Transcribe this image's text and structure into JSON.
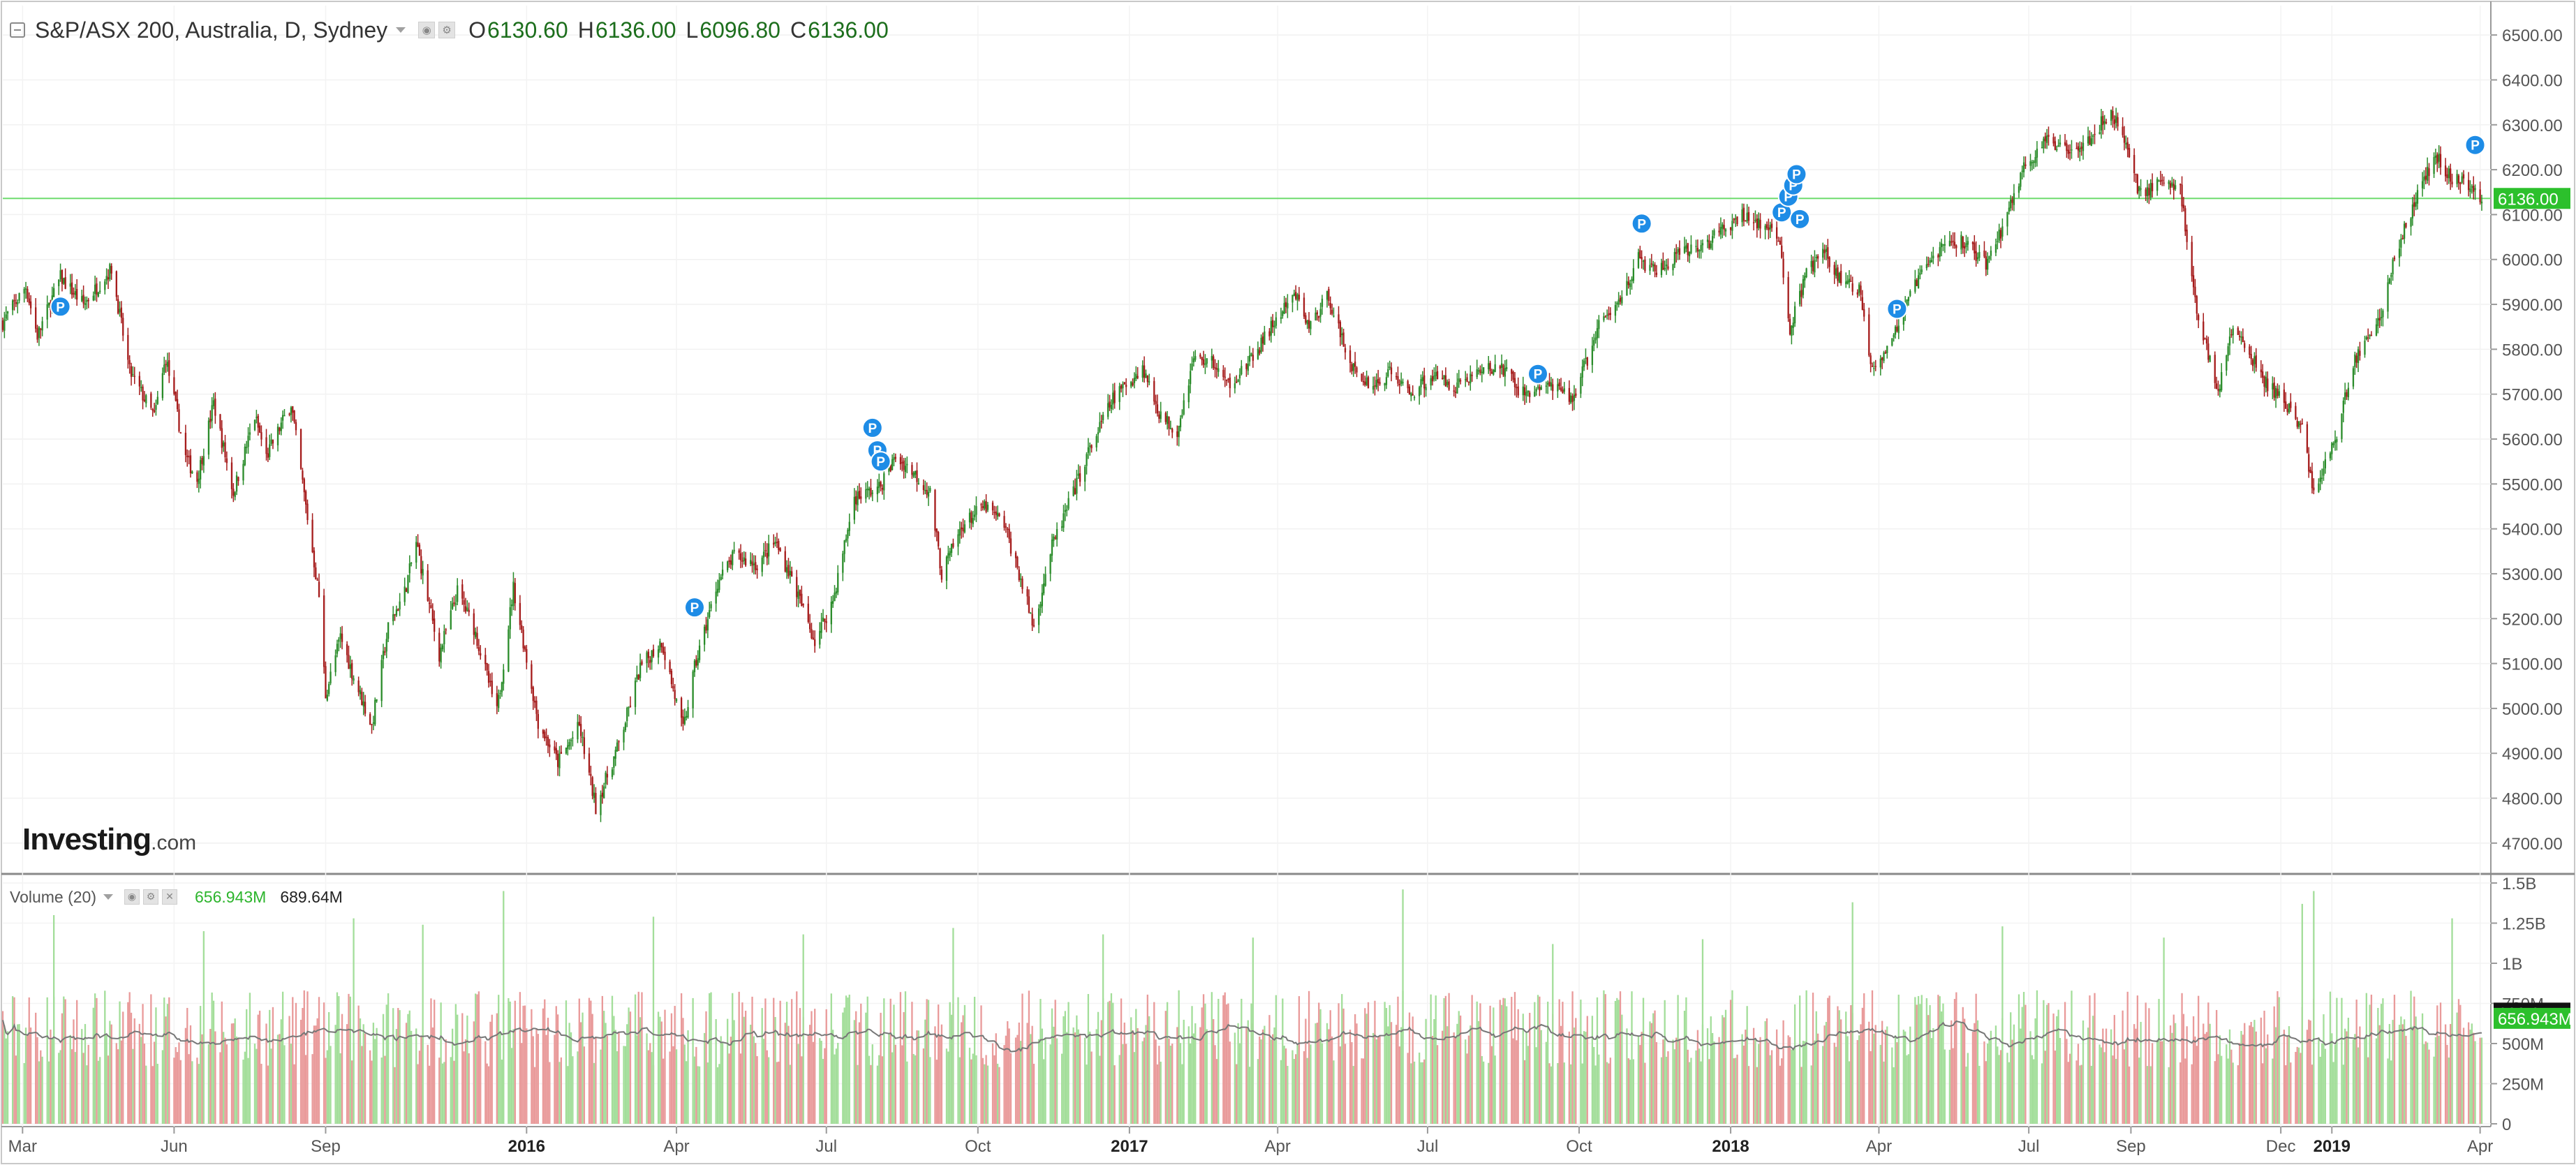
{
  "header": {
    "title": "S&P/ASX 200, Australia, D, Sydney",
    "ohlc": [
      {
        "key": "O",
        "value": "6130.60"
      },
      {
        "key": "H",
        "value": "6136.00"
      },
      {
        "key": "L",
        "value": "6096.80"
      },
      {
        "key": "C",
        "value": "6136.00"
      }
    ]
  },
  "volume_legend": {
    "label": "Volume (20)",
    "volume_value": "656.943M",
    "ma_value": "689.64M"
  },
  "watermark": {
    "main": "Investing",
    "suffix": ".com"
  },
  "colors": {
    "up": "#2a8c2a",
    "down": "#a51b1b",
    "volume_up": "#a3de9a",
    "volume_down": "#e99a9a",
    "last_price_badge": "#2cc02c",
    "marker": "#1e8ce6",
    "ma_line": "#777777"
  },
  "chart_data": [
    {
      "type": "candlestick",
      "price_axis": {
        "ylim": [
          4650,
          6550
        ],
        "ticks": [
          "4700.00",
          "4800.00",
          "4900.00",
          "5000.00",
          "5100.00",
          "5200.00",
          "5300.00",
          "5400.00",
          "5500.00",
          "5600.00",
          "5700.00",
          "5800.00",
          "5900.00",
          "6000.00",
          "6100.00",
          "6200.00",
          "6300.00",
          "6400.00",
          "6500.00"
        ]
      },
      "x_axis": {
        "range": [
          "2015-02-17",
          "2019-04-02"
        ],
        "ticks": [
          {
            "date": "2015-03-01",
            "label": "Mar",
            "bold": false
          },
          {
            "date": "2015-06-01",
            "label": "Jun",
            "bold": false
          },
          {
            "date": "2015-09-01",
            "label": "Sep",
            "bold": false
          },
          {
            "date": "2016-01-01",
            "label": "2016",
            "bold": true
          },
          {
            "date": "2016-04-01",
            "label": "Apr",
            "bold": false
          },
          {
            "date": "2016-07-01",
            "label": "Jul",
            "bold": false
          },
          {
            "date": "2016-10-01",
            "label": "Oct",
            "bold": false
          },
          {
            "date": "2017-01-01",
            "label": "2017",
            "bold": true
          },
          {
            "date": "2017-04-01",
            "label": "Apr",
            "bold": false
          },
          {
            "date": "2017-07-01",
            "label": "Jul",
            "bold": false
          },
          {
            "date": "2017-10-01",
            "label": "Oct",
            "bold": false
          },
          {
            "date": "2018-01-01",
            "label": "2018",
            "bold": true
          },
          {
            "date": "2018-04-01",
            "label": "Apr",
            "bold": false
          },
          {
            "date": "2018-07-01",
            "label": "Jul",
            "bold": false
          },
          {
            "date": "2018-09-01",
            "label": "Sep",
            "bold": false
          },
          {
            "date": "2018-12-01",
            "label": "Dec",
            "bold": false
          },
          {
            "date": "2019-01-01",
            "label": "2019",
            "bold": true
          },
          {
            "date": "2019-04-01",
            "label": "Apr",
            "bold": false
          }
        ]
      },
      "close_series": [
        [
          "2015-02-17",
          5860
        ],
        [
          "2015-03-03",
          5940
        ],
        [
          "2015-03-10",
          5830
        ],
        [
          "2015-03-24",
          5960
        ],
        [
          "2015-04-07",
          5900
        ],
        [
          "2015-04-24",
          5980
        ],
        [
          "2015-05-05",
          5750
        ],
        [
          "2015-05-20",
          5650
        ],
        [
          "2015-05-27",
          5780
        ],
        [
          "2015-06-08",
          5560
        ],
        [
          "2015-06-15",
          5510
        ],
        [
          "2015-06-25",
          5680
        ],
        [
          "2015-07-07",
          5480
        ],
        [
          "2015-07-20",
          5650
        ],
        [
          "2015-07-27",
          5560
        ],
        [
          "2015-08-11",
          5680
        ],
        [
          "2015-08-20",
          5450
        ],
        [
          "2015-08-28",
          5250
        ],
        [
          "2015-09-01",
          5030
        ],
        [
          "2015-09-10",
          5160
        ],
        [
          "2015-09-18",
          5070
        ],
        [
          "2015-09-29",
          4960
        ],
        [
          "2015-10-09",
          5180
        ],
        [
          "2015-10-19",
          5260
        ],
        [
          "2015-10-26",
          5370
        ],
        [
          "2015-11-09",
          5120
        ],
        [
          "2015-11-20",
          5260
        ],
        [
          "2015-11-30",
          5180
        ],
        [
          "2015-12-14",
          4990
        ],
        [
          "2015-12-24",
          5270
        ],
        [
          "2016-01-08",
          4970
        ],
        [
          "2016-01-20",
          4880
        ],
        [
          "2016-02-02",
          4960
        ],
        [
          "2016-02-12",
          4780
        ],
        [
          "2016-02-26",
          4920
        ],
        [
          "2016-03-10",
          5090
        ],
        [
          "2016-03-23",
          5150
        ],
        [
          "2016-04-05",
          4950
        ],
        [
          "2016-04-12",
          5090
        ],
        [
          "2016-04-26",
          5280
        ],
        [
          "2016-05-06",
          5340
        ],
        [
          "2016-05-20",
          5320
        ],
        [
          "2016-05-31",
          5370
        ],
        [
          "2016-06-10",
          5290
        ],
        [
          "2016-06-24",
          5150
        ],
        [
          "2016-07-05",
          5240
        ],
        [
          "2016-07-18",
          5470
        ],
        [
          "2016-08-02",
          5490
        ],
        [
          "2016-08-12",
          5560
        ],
        [
          "2016-08-22",
          5530
        ],
        [
          "2016-09-02",
          5480
        ],
        [
          "2016-09-09",
          5300
        ],
        [
          "2016-09-22",
          5410
        ],
        [
          "2016-10-05",
          5450
        ],
        [
          "2016-10-17",
          5410
        ],
        [
          "2016-10-26",
          5300
        ],
        [
          "2016-11-04",
          5180
        ],
        [
          "2016-11-14",
          5350
        ],
        [
          "2016-11-28",
          5480
        ],
        [
          "2016-12-07",
          5570
        ],
        [
          "2016-12-22",
          5690
        ],
        [
          "2017-01-09",
          5760
        ],
        [
          "2017-01-20",
          5650
        ],
        [
          "2017-01-30",
          5620
        ],
        [
          "2017-02-09",
          5780
        ],
        [
          "2017-02-21",
          5770
        ],
        [
          "2017-03-01",
          5720
        ],
        [
          "2017-03-15",
          5770
        ],
        [
          "2017-03-30",
          5860
        ],
        [
          "2017-04-12",
          5920
        ],
        [
          "2017-04-20",
          5850
        ],
        [
          "2017-05-02",
          5920
        ],
        [
          "2017-05-10",
          5820
        ],
        [
          "2017-05-19",
          5740
        ],
        [
          "2017-05-30",
          5720
        ],
        [
          "2017-06-09",
          5750
        ],
        [
          "2017-06-20",
          5700
        ],
        [
          "2017-07-03",
          5740
        ],
        [
          "2017-07-18",
          5720
        ],
        [
          "2017-08-01",
          5750
        ],
        [
          "2017-08-15",
          5760
        ],
        [
          "2017-08-28",
          5700
        ],
        [
          "2017-09-11",
          5720
        ],
        [
          "2017-09-27",
          5690
        ],
        [
          "2017-10-06",
          5780
        ],
        [
          "2017-10-13",
          5850
        ],
        [
          "2017-10-24",
          5900
        ],
        [
          "2017-11-06",
          6000
        ],
        [
          "2017-11-17",
          5970
        ],
        [
          "2017-12-01",
          6010
        ],
        [
          "2017-12-15",
          6030
        ],
        [
          "2017-12-29",
          6070
        ],
        [
          "2018-01-10",
          6100
        ],
        [
          "2018-01-22",
          6070
        ],
        [
          "2018-01-31",
          6040
        ],
        [
          "2018-02-06",
          5840
        ],
        [
          "2018-02-15",
          5960
        ],
        [
          "2018-02-26",
          6020
        ],
        [
          "2018-03-07",
          5960
        ],
        [
          "2018-03-20",
          5930
        ],
        [
          "2018-03-28",
          5760
        ],
        [
          "2018-04-10",
          5830
        ],
        [
          "2018-04-24",
          5950
        ],
        [
          "2018-05-09",
          6030
        ],
        [
          "2018-05-23",
          6040
        ],
        [
          "2018-06-05",
          5990
        ],
        [
          "2018-06-15",
          6070
        ],
        [
          "2018-06-27",
          6200
        ],
        [
          "2018-07-11",
          6260
        ],
        [
          "2018-07-25",
          6250
        ],
        [
          "2018-08-07",
          6270
        ],
        [
          "2018-08-20",
          6330
        ],
        [
          "2018-08-30",
          6250
        ],
        [
          "2018-09-06",
          6150
        ],
        [
          "2018-09-19",
          6170
        ],
        [
          "2018-10-01",
          6160
        ],
        [
          "2018-10-11",
          5880
        ],
        [
          "2018-10-24",
          5710
        ],
        [
          "2018-11-02",
          5850
        ],
        [
          "2018-11-13",
          5780
        ],
        [
          "2018-11-23",
          5720
        ],
        [
          "2018-12-04",
          5680
        ],
        [
          "2018-12-14",
          5620
        ],
        [
          "2018-12-21",
          5480
        ],
        [
          "2019-01-03",
          5600
        ],
        [
          "2019-01-15",
          5780
        ],
        [
          "2019-01-29",
          5860
        ],
        [
          "2019-02-08",
          6000
        ],
        [
          "2019-02-22",
          6150
        ],
        [
          "2019-03-05",
          6230
        ],
        [
          "2019-03-15",
          6180
        ],
        [
          "2019-03-27",
          6160
        ],
        [
          "2019-04-02",
          6136
        ]
      ],
      "last_price": 6136.0,
      "last_price_label": "6136.00",
      "markers": [
        {
          "date": "2015-03-24",
          "price": 5895,
          "label": "P"
        },
        {
          "date": "2016-04-12",
          "price": 5225,
          "label": "P"
        },
        {
          "date": "2016-07-29",
          "price": 5625,
          "label": "P"
        },
        {
          "date": "2016-08-01",
          "price": 5575,
          "label": "P"
        },
        {
          "date": "2016-08-03",
          "price": 5550,
          "label": "P"
        },
        {
          "date": "2017-09-06",
          "price": 5745,
          "label": "P"
        },
        {
          "date": "2017-11-08",
          "price": 6080,
          "label": "P"
        },
        {
          "date": "2018-02-01",
          "price": 6105,
          "label": "P"
        },
        {
          "date": "2018-02-05",
          "price": 6140,
          "label": "P"
        },
        {
          "date": "2018-02-08",
          "price": 6165,
          "label": "P"
        },
        {
          "date": "2018-02-10",
          "price": 6190,
          "label": "P"
        },
        {
          "date": "2018-02-12",
          "price": 6090,
          "label": "P"
        },
        {
          "date": "2018-04-12",
          "price": 5890,
          "label": "P"
        },
        {
          "date": "2019-03-29",
          "price": 6255,
          "label": "P"
        }
      ]
    },
    {
      "type": "bar",
      "name": "Volume (20)",
      "volume_axis": {
        "ylim": [
          0,
          1500000000
        ],
        "ticks": [
          {
            "value": 0,
            "label": "0"
          },
          {
            "value": 250000000,
            "label": "250M"
          },
          {
            "value": 500000000,
            "label": "500M"
          },
          {
            "value": 750000000,
            "label": "750M"
          },
          {
            "value": 1000000000,
            "label": "1B"
          },
          {
            "value": 1250000000,
            "label": "1.25B"
          },
          {
            "value": 1500000000,
            "label": "1.5B"
          }
        ]
      },
      "volume_baseline": 640000000,
      "spikes": [
        [
          "2015-03-20",
          1300000000
        ],
        [
          "2015-06-19",
          1200000000
        ],
        [
          "2015-09-18",
          1280000000
        ],
        [
          "2015-10-30",
          1240000000
        ],
        [
          "2015-12-18",
          1450000000
        ],
        [
          "2016-03-18",
          1290000000
        ],
        [
          "2016-06-17",
          1180000000
        ],
        [
          "2016-09-16",
          1220000000
        ],
        [
          "2016-12-16",
          1180000000
        ],
        [
          "2017-03-17",
          1160000000
        ],
        [
          "2017-06-16",
          1460000000
        ],
        [
          "2017-09-15",
          1120000000
        ],
        [
          "2017-12-15",
          1150000000
        ],
        [
          "2018-03-16",
          1380000000
        ],
        [
          "2018-06-15",
          1230000000
        ],
        [
          "2018-09-21",
          1160000000
        ],
        [
          "2018-12-14",
          1370000000
        ],
        [
          "2018-12-21",
          1450000000
        ],
        [
          "2019-03-15",
          1280000000
        ]
      ],
      "ma_baseline": 580000000,
      "volume_latest": 656943000,
      "ma_latest": 689640000,
      "volume_latest_label": "656.943M",
      "ma_latest_label": "689.64M"
    }
  ]
}
